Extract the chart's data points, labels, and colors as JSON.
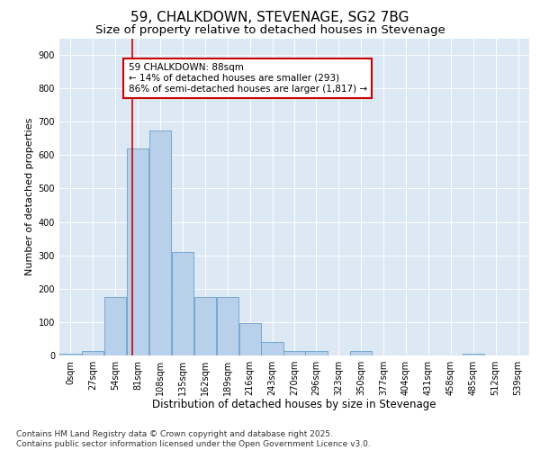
{
  "title": "59, CHALKDOWN, STEVENAGE, SG2 7BG",
  "subtitle": "Size of property relative to detached houses in Stevenage",
  "xlabel": "Distribution of detached houses by size in Stevenage",
  "ylabel": "Number of detached properties",
  "bar_color": "#b8d0ea",
  "bar_edge_color": "#6aa0cc",
  "background_color": "#dde8f5",
  "bin_labels": [
    "0sqm",
    "27sqm",
    "54sqm",
    "81sqm",
    "108sqm",
    "135sqm",
    "162sqm",
    "189sqm",
    "216sqm",
    "243sqm",
    "270sqm",
    "296sqm",
    "323sqm",
    "350sqm",
    "377sqm",
    "404sqm",
    "431sqm",
    "458sqm",
    "485sqm",
    "512sqm",
    "539sqm"
  ],
  "bar_values": [
    5,
    13,
    175,
    620,
    675,
    310,
    175,
    175,
    97,
    40,
    14,
    14,
    0,
    14,
    0,
    0,
    0,
    0,
    5,
    0,
    0
  ],
  "bin_edges": [
    0,
    27,
    54,
    81,
    108,
    135,
    162,
    189,
    216,
    243,
    270,
    296,
    323,
    350,
    377,
    404,
    431,
    458,
    485,
    512,
    539
  ],
  "ylim": [
    0,
    950
  ],
  "yticks": [
    0,
    100,
    200,
    300,
    400,
    500,
    600,
    700,
    800,
    900
  ],
  "property_size": 88,
  "property_line_color": "#cc0000",
  "annotation_text": "59 CHALKDOWN: 88sqm\n← 14% of detached houses are smaller (293)\n86% of semi-detached houses are larger (1,817) →",
  "annotation_box_color": "#ffffff",
  "annotation_edge_color": "#cc0000",
  "footnote": "Contains HM Land Registry data © Crown copyright and database right 2025.\nContains public sector information licensed under the Open Government Licence v3.0.",
  "title_fontsize": 11,
  "subtitle_fontsize": 9.5,
  "xlabel_fontsize": 8.5,
  "ylabel_fontsize": 8,
  "tick_fontsize": 7,
  "annotation_fontsize": 7.5,
  "footnote_fontsize": 6.5
}
